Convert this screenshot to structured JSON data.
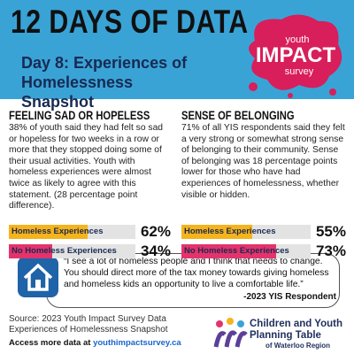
{
  "header": {
    "title": "12 DAYS OF DATA",
    "subtitle": "Day 8: Experiences of Homelessness Snapshot",
    "logo": {
      "top": "youth",
      "main": "IMPACT",
      "bottom": "survey"
    }
  },
  "panels": [
    {
      "title": "FEELING SAD OR HOPELESS",
      "text": "38% of youth said they had felt so sad or hopeless for two weeks in a row or more that they stopped doing some of their usual activities. Youth with homeless experiences were almost twice as likely to agree with this statement. (28 percentage point difference).",
      "xlim": [
        0,
        100
      ],
      "bars": [
        {
          "label": "Homeless Experiences",
          "value": 62,
          "value_label": "62%",
          "color": "#f5b31c"
        },
        {
          "label": "No Homeless Experiences",
          "value": 34,
          "value_label": "34%",
          "color": "#e4336c"
        }
      ]
    },
    {
      "title": "SENSE OF BELONGING",
      "text": "71% of all YIS respondents said they felt a very strong or somewhat strong sense of belonging to their community. Sense of belonging was 18 percentage points lower for those who have had experiences of homelessness, whether visible or hidden.",
      "xlim": [
        0,
        100
      ],
      "bars": [
        {
          "label": "Homeless Experiences",
          "value": 55,
          "value_label": "55%",
          "color": "#f5b31c"
        },
        {
          "label": "No Homeless Experiences",
          "value": 73,
          "value_label": "73%",
          "color": "#e4336c"
        }
      ]
    }
  ],
  "quote": {
    "text": "“I see a lot of homeless people and I think that needs to change. You should direct more of the tax money towards giving homeless and homeless kids an opportunity to live a comfortable life.”",
    "attribution": "-2023 YIS Respondent"
  },
  "footer": {
    "source": "Source: 2023 Youth Impact Survey Data Experiences of Homelessness Snapshot",
    "access": "Access more data at",
    "link": "youthimpactsurvey.ca",
    "org": [
      "Children and Youth",
      "Planning Table",
      "of Waterloo Region"
    ]
  }
}
